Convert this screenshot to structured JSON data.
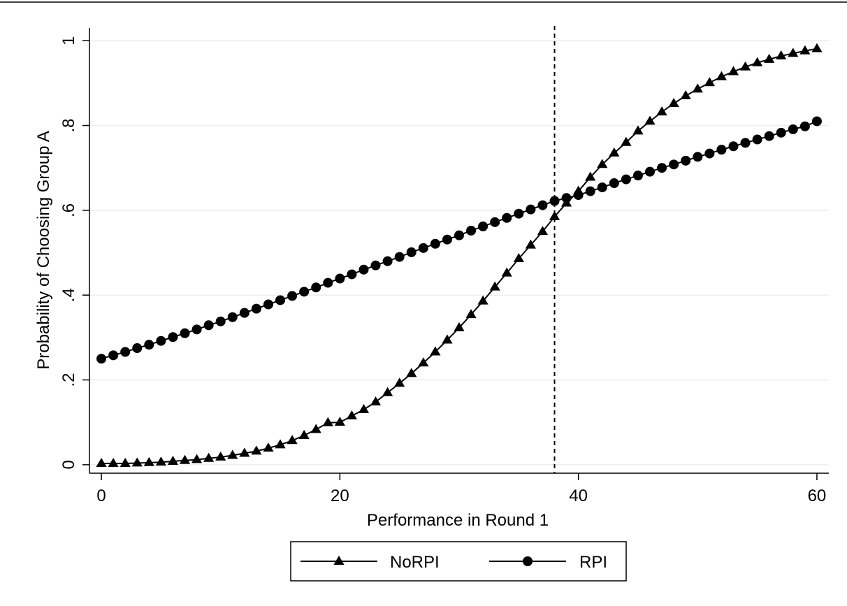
{
  "chart_data": {
    "type": "line",
    "title": "",
    "xlabel": "Performance in Round 1",
    "ylabel": "Probability of Choosing Group A",
    "xlim": [
      -1,
      61
    ],
    "ylim": [
      -0.02,
      1.03
    ],
    "xticks": [
      0,
      20,
      40,
      60
    ],
    "xtick_labels": [
      "0",
      "20",
      "40",
      "60"
    ],
    "yticks": [
      0,
      0.2,
      0.4,
      0.6,
      0.8,
      1
    ],
    "ytick_labels": [
      "0",
      ".2",
      ".4",
      ".6",
      ".8",
      "1"
    ],
    "grid": "horizontal",
    "legend_position": "bottom",
    "reference_line": {
      "axis": "x",
      "value": 38,
      "style": "dashed"
    },
    "x": [
      0,
      1,
      2,
      3,
      4,
      5,
      6,
      7,
      8,
      9,
      10,
      11,
      12,
      13,
      14,
      15,
      16,
      17,
      18,
      19,
      20,
      21,
      22,
      23,
      24,
      25,
      26,
      27,
      28,
      29,
      30,
      31,
      32,
      33,
      34,
      35,
      36,
      37,
      38,
      39,
      40,
      41,
      42,
      43,
      44,
      45,
      46,
      47,
      48,
      49,
      50,
      51,
      52,
      53,
      54,
      55,
      56,
      57,
      58,
      59,
      60
    ],
    "series": [
      {
        "name": "NoRPI",
        "marker": "triangle",
        "values": [
          0.003,
          0.003,
          0.003,
          0.004,
          0.005,
          0.006,
          0.008,
          0.01,
          0.012,
          0.015,
          0.018,
          0.022,
          0.027,
          0.032,
          0.039,
          0.047,
          0.057,
          0.069,
          0.083,
          0.099,
          0.1,
          0.115,
          0.13,
          0.148,
          0.17,
          0.192,
          0.215,
          0.24,
          0.266,
          0.294,
          0.323,
          0.354,
          0.386,
          0.419,
          0.452,
          0.486,
          0.518,
          0.55,
          0.585,
          0.617,
          0.645,
          0.678,
          0.708,
          0.735,
          0.76,
          0.787,
          0.81,
          0.832,
          0.852,
          0.87,
          0.886,
          0.901,
          0.915,
          0.927,
          0.938,
          0.948,
          0.956,
          0.964,
          0.97,
          0.976,
          0.981
        ]
      },
      {
        "name": "RPI",
        "marker": "circle",
        "values": [
          0.25,
          0.258,
          0.266,
          0.275,
          0.283,
          0.292,
          0.301,
          0.31,
          0.319,
          0.329,
          0.338,
          0.348,
          0.358,
          0.368,
          0.378,
          0.388,
          0.398,
          0.408,
          0.418,
          0.429,
          0.439,
          0.449,
          0.46,
          0.47,
          0.48,
          0.49,
          0.501,
          0.511,
          0.521,
          0.531,
          0.541,
          0.552,
          0.562,
          0.572,
          0.582,
          0.592,
          0.602,
          0.612,
          0.622,
          0.629,
          0.636,
          0.645,
          0.654,
          0.664,
          0.673,
          0.682,
          0.691,
          0.7,
          0.708,
          0.717,
          0.726,
          0.734,
          0.743,
          0.751,
          0.759,
          0.767,
          0.775,
          0.783,
          0.791,
          0.798,
          0.81
        ]
      }
    ]
  }
}
